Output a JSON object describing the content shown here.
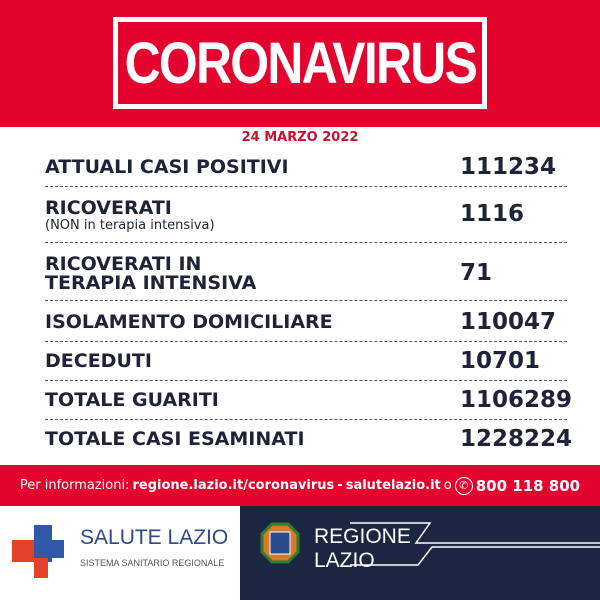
{
  "header": {
    "title": "CORONAVIRUS"
  },
  "date": "24 MARZO 2022",
  "rows": [
    {
      "label": "ATTUALI CASI POSITIVI",
      "value": "111234"
    },
    {
      "label": "RICOVERATI",
      "sublabel": "(NON in terapia intensiva)",
      "value": "1116"
    },
    {
      "label": "RICOVERATI IN",
      "label2": "TERAPIA INTENSIVA",
      "value": "71"
    },
    {
      "label": "ISOLAMENTO DOMICILIARE",
      "value": "110047"
    },
    {
      "label": "DECEDUTI",
      "value": "10701"
    },
    {
      "label": "TOTALE GUARITI",
      "value": "1106289"
    },
    {
      "label": "TOTALE CASI ESAMINATI",
      "value": "1228224"
    }
  ],
  "info": {
    "prefix": "Per informazioni:",
    "link1": "regione.lazio.it/coronavirus",
    "sep": "-",
    "link2": "salutelazio.it",
    "or": "o",
    "phone": "800 118 800"
  },
  "footer": {
    "salute_title": "SALUTE LAZIO",
    "salute_sub": "SISTEMA SANITARIO REGIONALE",
    "regione_line1": "REGIONE",
    "regione_line2": "LAZIO"
  },
  "colors": {
    "red": "#e4032e",
    "navy": "#1c2541",
    "text": "#1f2338"
  }
}
